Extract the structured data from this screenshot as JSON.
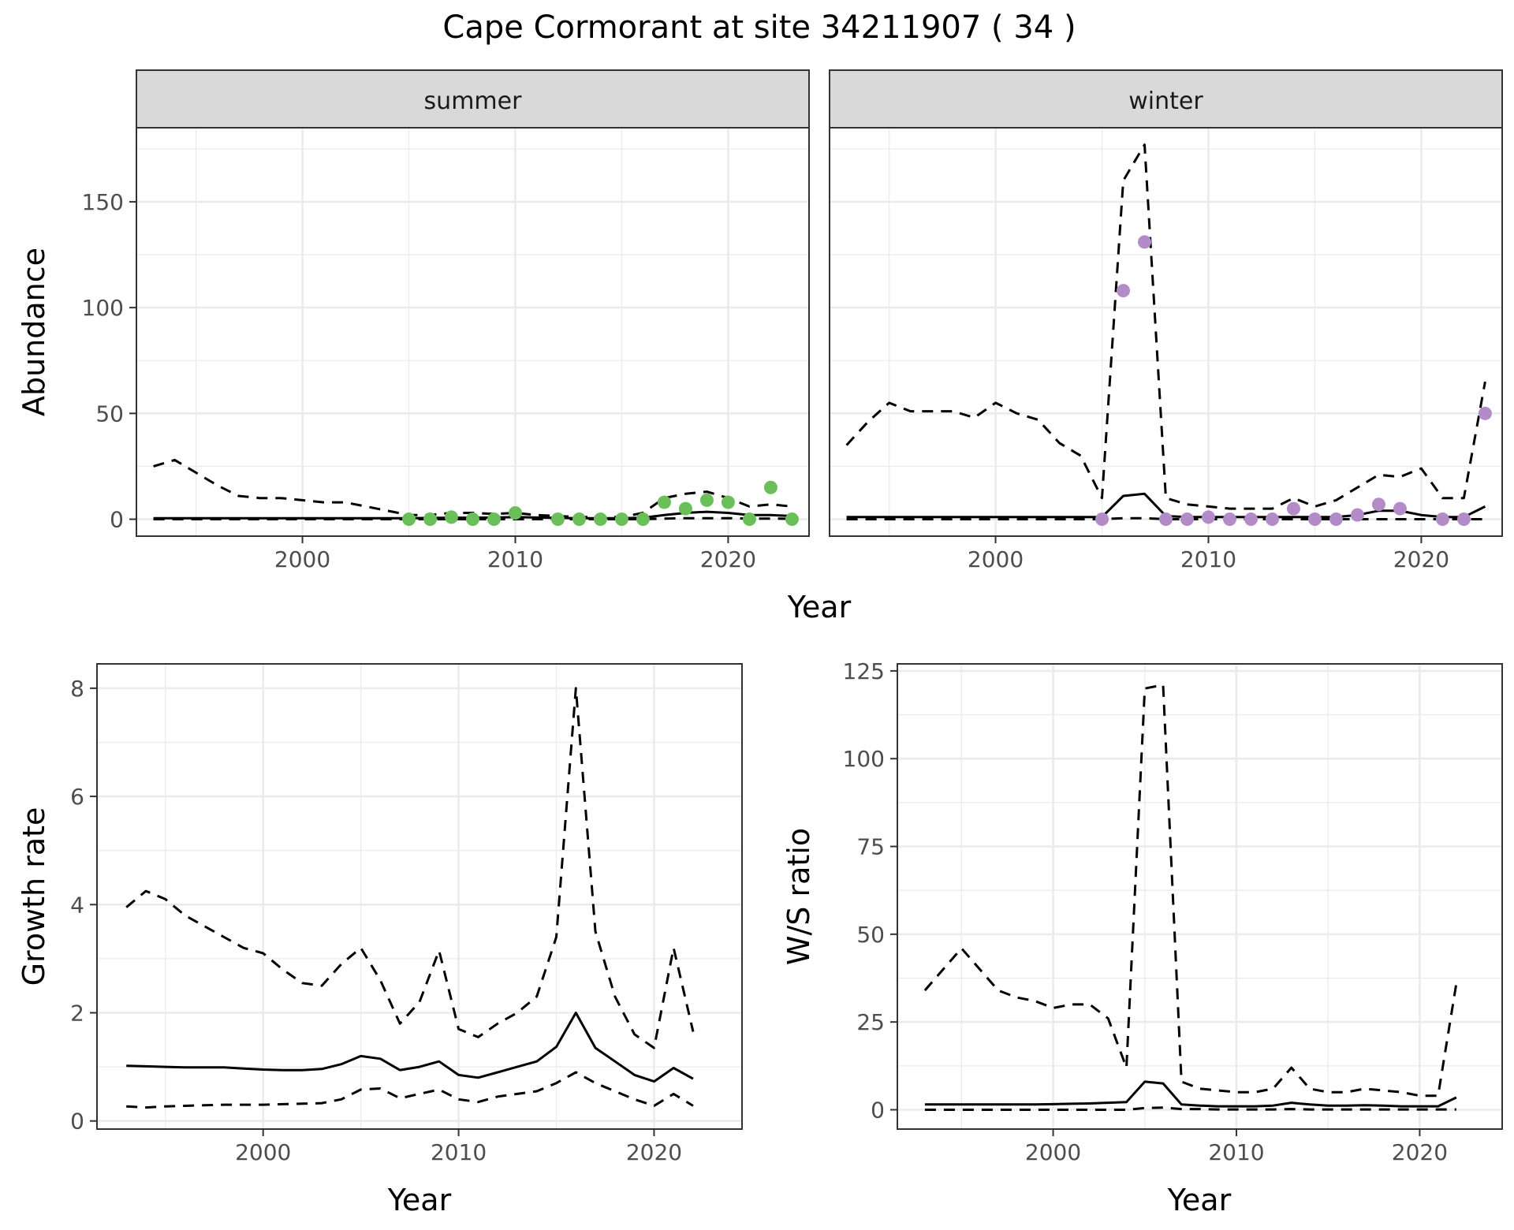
{
  "chart_data": [
    {
      "type": "line",
      "panel": "summer",
      "strip": "summer",
      "title": "Cape Cormorant at site 34211907 ( 34 )",
      "xlabel": "Year",
      "ylabel": "Abundance",
      "xlim": [
        1992.2,
        2023.8
      ],
      "ylim": [
        -8,
        185
      ],
      "xticks": [
        2000,
        2010,
        2020
      ],
      "yticks": [
        0,
        50,
        100,
        150
      ],
      "point_color": "#6abf5a",
      "x": [
        1993,
        1994,
        1995,
        1996,
        1997,
        1998,
        1999,
        2000,
        2001,
        2002,
        2003,
        2004,
        2005,
        2006,
        2007,
        2008,
        2009,
        2010,
        2011,
        2012,
        2013,
        2014,
        2015,
        2016,
        2017,
        2018,
        2019,
        2020,
        2021,
        2022,
        2023
      ],
      "series": [
        {
          "role": "mean",
          "style": "solid",
          "values": [
            0.5,
            0.5,
            0.5,
            0.5,
            0.5,
            0.5,
            0.5,
            0.5,
            0.5,
            0.5,
            0.5,
            0.5,
            0.5,
            0.6,
            0.7,
            0.7,
            0.8,
            1,
            0.8,
            0.6,
            0.5,
            0.5,
            0.5,
            0.7,
            2,
            3,
            3.5,
            3,
            2,
            2,
            1.5
          ]
        },
        {
          "role": "upper",
          "style": "dashed",
          "values": [
            25,
            28,
            22,
            16,
            11,
            10,
            10,
            9,
            8,
            8,
            6,
            4,
            2,
            2,
            3,
            3,
            2.5,
            3,
            2,
            1.5,
            1,
            1,
            1,
            3,
            10,
            12,
            13,
            10,
            6,
            7,
            6
          ]
        },
        {
          "role": "lower",
          "style": "dashed",
          "values": [
            0,
            0,
            0,
            0,
            0,
            0,
            0,
            0,
            0,
            0,
            0,
            0,
            0,
            0,
            0,
            0,
            0,
            0,
            0,
            0,
            0,
            0,
            0,
            0,
            0.3,
            0.5,
            0.5,
            0.5,
            0.3,
            0.3,
            0.2
          ]
        },
        {
          "role": "observed",
          "style": "points",
          "x": [
            2005,
            2006,
            2007,
            2008,
            2009,
            2010,
            2012,
            2013,
            2014,
            2015,
            2016,
            2017,
            2018,
            2019,
            2020,
            2021,
            2022,
            2023
          ],
          "values": [
            0,
            0,
            1,
            0,
            0,
            3,
            0,
            0,
            0,
            0,
            0,
            8,
            5,
            9,
            8,
            0,
            15,
            0
          ]
        }
      ]
    },
    {
      "type": "line",
      "panel": "winter",
      "strip": "winter",
      "xlabel": "Year",
      "xlim": [
        1992.2,
        2023.8
      ],
      "ylim": [
        -8,
        185
      ],
      "xticks": [
        2000,
        2010,
        2020
      ],
      "yticks": [
        0,
        50,
        100,
        150
      ],
      "point_color": "#b28bc7",
      "x": [
        1993,
        1994,
        1995,
        1996,
        1997,
        1998,
        1999,
        2000,
        2001,
        2002,
        2003,
        2004,
        2005,
        2006,
        2007,
        2008,
        2009,
        2010,
        2011,
        2012,
        2013,
        2014,
        2015,
        2016,
        2017,
        2018,
        2019,
        2020,
        2021,
        2022,
        2023
      ],
      "series": [
        {
          "role": "mean",
          "style": "solid",
          "values": [
            1,
            1,
            1,
            1,
            1,
            1,
            1,
            1,
            1,
            1,
            1,
            1,
            1,
            11,
            12,
            1.5,
            1,
            1,
            1,
            1,
            1,
            1,
            1,
            1,
            2,
            4,
            4,
            2,
            1,
            1,
            6
          ]
        },
        {
          "role": "upper",
          "style": "dashed",
          "values": [
            35,
            46,
            55,
            51,
            51,
            51,
            48,
            55,
            50,
            47,
            36,
            30,
            10,
            160,
            177,
            10,
            7,
            6,
            5,
            5,
            5,
            10,
            6,
            9,
            15,
            21,
            20,
            24,
            10,
            10,
            65
          ]
        },
        {
          "role": "lower",
          "style": "dashed",
          "values": [
            0,
            0,
            0,
            0,
            0,
            0,
            0,
            0,
            0,
            0,
            0,
            0,
            0,
            0.5,
            0.5,
            0,
            0,
            0,
            0,
            0,
            0,
            0,
            0,
            0,
            0,
            0,
            0,
            0,
            0,
            0,
            0
          ]
        },
        {
          "role": "observed",
          "style": "points",
          "x": [
            2005,
            2006,
            2007,
            2008,
            2009,
            2010,
            2011,
            2012,
            2013,
            2014,
            2015,
            2016,
            2017,
            2018,
            2019,
            2021,
            2022,
            2023
          ],
          "values": [
            0,
            108,
            131,
            0,
            0,
            1,
            0,
            0,
            0,
            5,
            0,
            0,
            2,
            7,
            5,
            0,
            0,
            50
          ]
        }
      ]
    },
    {
      "type": "line",
      "panel": "growth",
      "xlabel": "Year",
      "ylabel": "Growth rate",
      "xlim": [
        1991.5,
        2024.5
      ],
      "ylim": [
        -0.15,
        8.45
      ],
      "xticks": [
        2000,
        2010,
        2020
      ],
      "yticks": [
        0,
        2,
        4,
        6,
        8
      ],
      "x": [
        1993,
        1994,
        1995,
        1996,
        1997,
        1998,
        1999,
        2000,
        2001,
        2002,
        2003,
        2004,
        2005,
        2006,
        2007,
        2008,
        2009,
        2010,
        2011,
        2012,
        2013,
        2014,
        2015,
        2016,
        2017,
        2018,
        2019,
        2020,
        2021,
        2022
      ],
      "series": [
        {
          "role": "mean",
          "style": "solid",
          "values": [
            1.02,
            1.01,
            1.0,
            0.99,
            0.99,
            0.99,
            0.97,
            0.95,
            0.94,
            0.94,
            0.96,
            1.05,
            1.2,
            1.15,
            0.94,
            1.0,
            1.1,
            0.85,
            0.8,
            0.9,
            1.0,
            1.1,
            1.37,
            2.0,
            1.35,
            1.1,
            0.85,
            0.73,
            0.98,
            0.78
          ]
        },
        {
          "role": "upper",
          "style": "dashed",
          "values": [
            3.95,
            4.25,
            4.1,
            3.8,
            3.6,
            3.4,
            3.2,
            3.1,
            2.8,
            2.55,
            2.5,
            2.9,
            3.2,
            2.6,
            1.8,
            2.2,
            3.15,
            1.7,
            1.55,
            1.8,
            2.0,
            2.3,
            3.4,
            8.0,
            3.5,
            2.3,
            1.6,
            1.35,
            3.2,
            1.65
          ]
        },
        {
          "role": "lower",
          "style": "dashed",
          "values": [
            0.27,
            0.25,
            0.27,
            0.28,
            0.29,
            0.3,
            0.3,
            0.3,
            0.31,
            0.32,
            0.33,
            0.4,
            0.58,
            0.6,
            0.42,
            0.5,
            0.58,
            0.4,
            0.35,
            0.45,
            0.5,
            0.55,
            0.7,
            0.9,
            0.7,
            0.55,
            0.4,
            0.28,
            0.5,
            0.28
          ]
        }
      ]
    },
    {
      "type": "line",
      "panel": "ratio",
      "xlabel": "Year",
      "ylabel": "W/S ratio",
      "xlim": [
        1991.5,
        2024.5
      ],
      "ylim": [
        -5.5,
        127
      ],
      "xticks": [
        2000,
        2010,
        2020
      ],
      "yticks": [
        0,
        25,
        50,
        75,
        100,
        125
      ],
      "x": [
        1993,
        1994,
        1995,
        1996,
        1997,
        1998,
        1999,
        2000,
        2001,
        2002,
        2003,
        2004,
        2005,
        2006,
        2007,
        2008,
        2009,
        2010,
        2011,
        2012,
        2013,
        2014,
        2015,
        2016,
        2017,
        2018,
        2019,
        2020,
        2021,
        2022
      ],
      "series": [
        {
          "role": "mean",
          "style": "solid",
          "values": [
            1.5,
            1.5,
            1.5,
            1.5,
            1.5,
            1.5,
            1.5,
            1.6,
            1.7,
            1.8,
            2.0,
            2.2,
            8,
            7.5,
            1.5,
            1.2,
            1.0,
            1.0,
            1.0,
            1.2,
            2,
            1.5,
            1.2,
            1.2,
            1.3,
            1.2,
            1.0,
            1.0,
            1.0,
            3.5
          ]
        },
        {
          "role": "upper",
          "style": "dashed",
          "values": [
            34,
            40,
            46,
            40,
            34,
            32,
            31,
            29,
            30,
            30,
            26,
            12,
            120,
            121,
            8,
            6,
            5.5,
            5.0,
            5.0,
            6,
            12,
            6,
            5,
            5,
            6,
            5.5,
            5,
            4,
            4,
            36
          ]
        },
        {
          "role": "lower",
          "style": "dashed",
          "values": [
            0,
            0,
            0,
            0,
            0,
            0,
            0,
            0,
            0,
            0,
            0,
            0,
            0.5,
            0.6,
            0.2,
            0.2,
            0.1,
            0.1,
            0.1,
            0.1,
            0.2,
            0.1,
            0.1,
            0.1,
            0.1,
            0.1,
            0.1,
            0.1,
            0.1,
            0.1
          ]
        }
      ]
    }
  ]
}
